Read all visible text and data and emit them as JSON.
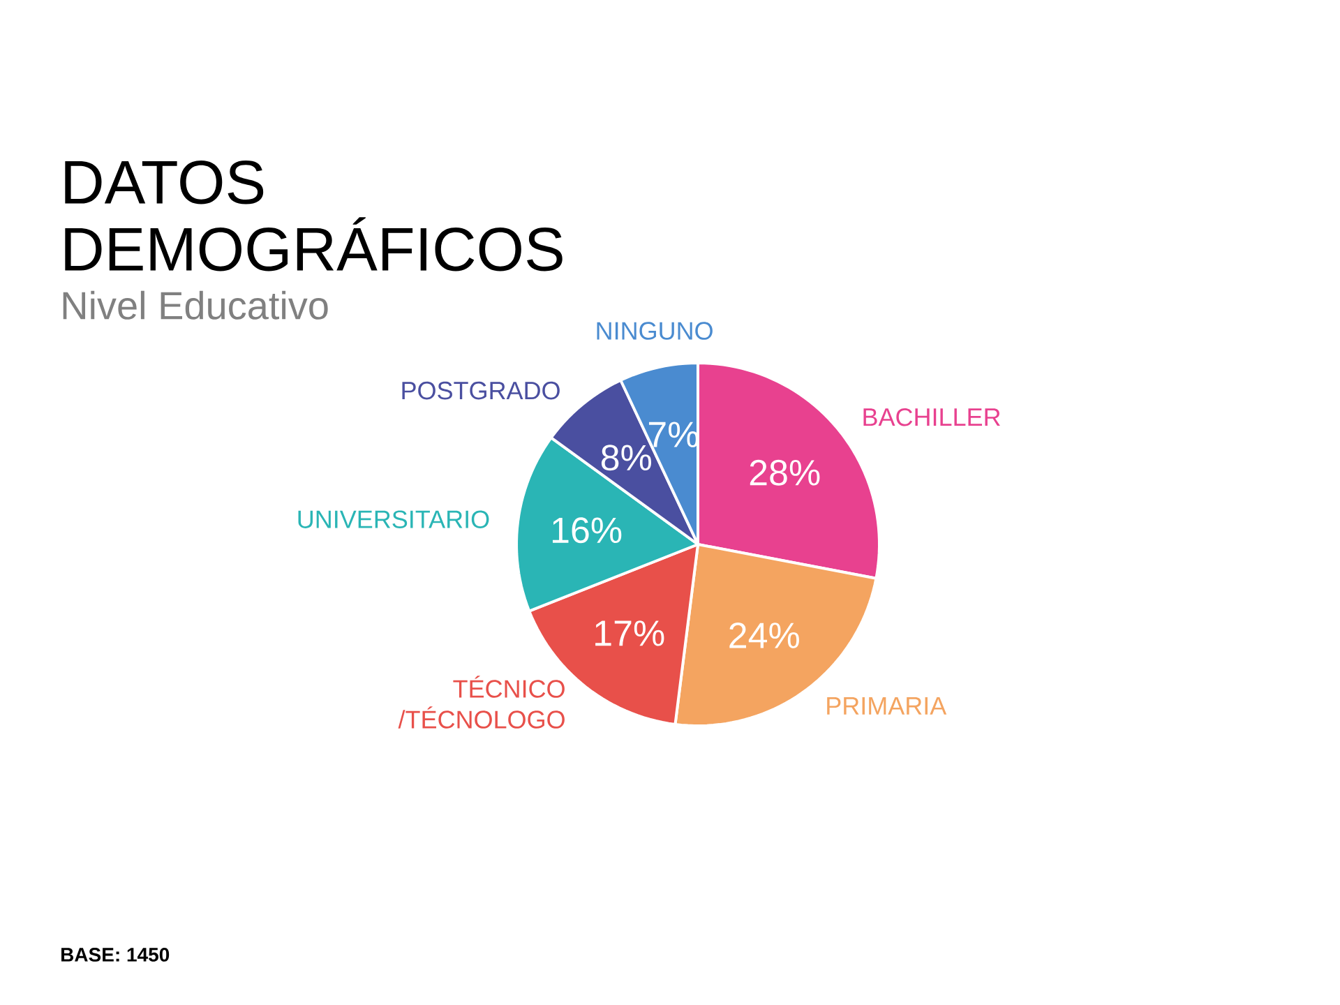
{
  "chart_data": {
    "type": "pie",
    "title": "DATOS DEMOGRÁFICOS",
    "subtitle": "Nivel Educativo",
    "categories": [
      "BACHILLER",
      "PRIMARIA",
      "TÉCNICO /TÉCNOLOGO",
      "UNIVERSITARIO",
      "POSTGRADO",
      "NINGUNO"
    ],
    "values": [
      28,
      24,
      17,
      16,
      8,
      7
    ],
    "value_labels": [
      "28%",
      "24%",
      "17%",
      "16%",
      "8%",
      "7%"
    ],
    "colors": [
      "#e8418f",
      "#f4a460",
      "#e8504a",
      "#2ab5b5",
      "#4a4fa0",
      "#4a8bd0"
    ],
    "annotations": [
      "BASE: 1450"
    ]
  }
}
